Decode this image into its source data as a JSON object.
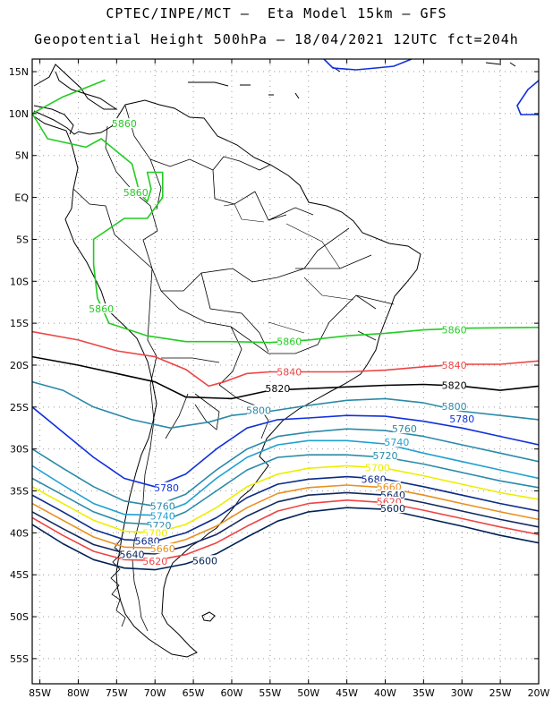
{
  "header": {
    "line1": "CPTEC/INPE/MCT –  Eta Model 15km – GFS",
    "line2": "Geopotential Height 500hPa – 18/04/2021 12UTC fct=204h"
  },
  "axes": {
    "lat_ticks": [
      "15N",
      "10N",
      "5N",
      "EQ",
      "5S",
      "10S",
      "15S",
      "20S",
      "25S",
      "30S",
      "35S",
      "40S",
      "45S",
      "50S",
      "55S"
    ],
    "lon_ticks": [
      "85W",
      "80W",
      "75W",
      "70W",
      "65W",
      "60W",
      "55W",
      "50W",
      "45W",
      "40W",
      "35W",
      "30W",
      "25W",
      "20W"
    ]
  },
  "chart_data": {
    "type": "contour_map",
    "variable": "Geopotential Height 500hPa",
    "model": "Eta Model 15km - GFS",
    "run": "18/04/2021 12UTC",
    "forecast": "fct=204h",
    "lon_range": [
      -86,
      -20
    ],
    "lat_range": [
      -58,
      16.5
    ],
    "contours": [
      {
        "level": 5860,
        "color": "#22cc22",
        "labels": [
          "5860",
          "5860",
          "5860",
          "5860",
          "5860"
        ]
      },
      {
        "level": 5840,
        "color": "#ee4444",
        "labels": [
          "5840",
          "5840"
        ]
      },
      {
        "level": 5820,
        "color": "#000000",
        "labels": [
          "5820",
          "5820"
        ]
      },
      {
        "level": 5800,
        "color": "#2a8aa8",
        "labels": [
          "5800",
          "5800"
        ]
      },
      {
        "level": 5780,
        "color": "#1030dd",
        "labels": [
          "5780",
          "5780"
        ]
      },
      {
        "level": 5760,
        "color": "#2a8aa8",
        "labels": [
          "5760",
          "5760"
        ]
      },
      {
        "level": 5740,
        "color": "#1fa0d0",
        "labels": [
          "5740",
          "5740"
        ]
      },
      {
        "level": 5720,
        "color": "#2a8aa8",
        "labels": [
          "5720",
          "5720"
        ]
      },
      {
        "level": 5700,
        "color": "#eeee00",
        "labels": [
          "5700",
          "5700"
        ]
      },
      {
        "level": 5680,
        "color": "#0a2a8a",
        "labels": [
          "5680",
          "5680"
        ]
      },
      {
        "level": 5660,
        "color": "#e89020",
        "labels": [
          "5660",
          "5660"
        ]
      },
      {
        "level": 5640,
        "color": "#102860",
        "labels": [
          "5640",
          "5640"
        ]
      },
      {
        "level": 5620,
        "color": "#ee4444",
        "labels": [
          "5620",
          "5620"
        ]
      },
      {
        "level": 5600,
        "color": "#002255",
        "labels": [
          "5600",
          "5600"
        ]
      }
    ]
  }
}
